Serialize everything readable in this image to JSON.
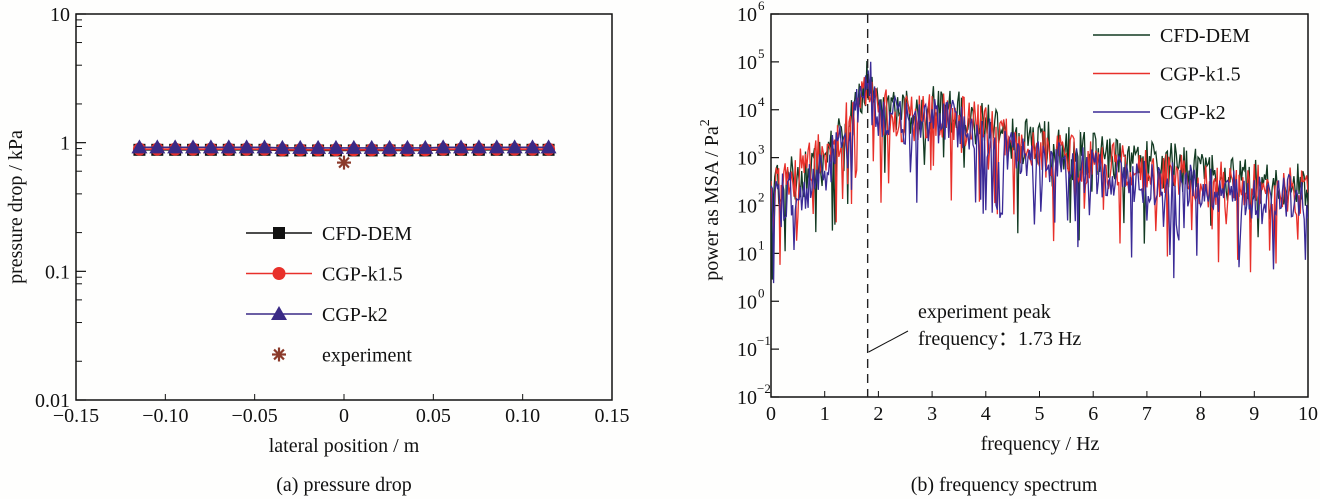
{
  "chart_data": [
    {
      "type": "line",
      "caption": "(a) pressure  drop",
      "xlabel": "lateral  position / m",
      "ylabel": "pressure  drop / kPa",
      "xlim": [
        -0.15,
        0.15
      ],
      "ylim": [
        0.01,
        10
      ],
      "yscale": "log",
      "xticks": [
        -0.15,
        -0.1,
        -0.05,
        0,
        0.05,
        0.1,
        0.15
      ],
      "xtick_labels": [
        "−0.15",
        "−0.10",
        "−0.05",
        "0",
        "0.05",
        "0.10",
        "0.15"
      ],
      "yticks": [
        0.01,
        0.1,
        1,
        10
      ],
      "ytick_labels": [
        "0.01",
        "0.1",
        "1",
        "10"
      ],
      "legend_position": "center",
      "x": [
        -0.1145,
        -0.1045,
        -0.0945,
        -0.0845,
        -0.0745,
        -0.0645,
        -0.0545,
        -0.0445,
        -0.0345,
        -0.0245,
        -0.0145,
        -0.0045,
        0.0055,
        0.0155,
        0.0255,
        0.0355,
        0.0455,
        0.0555,
        0.0655,
        0.0755,
        0.0855,
        0.0955,
        0.1055,
        0.1145
      ],
      "series": [
        {
          "name": "CFD-DEM",
          "color": "#111111",
          "marker": "square",
          "values": [
            0.88,
            0.88,
            0.88,
            0.88,
            0.88,
            0.88,
            0.88,
            0.88,
            0.87,
            0.87,
            0.87,
            0.87,
            0.87,
            0.87,
            0.87,
            0.87,
            0.87,
            0.88,
            0.88,
            0.88,
            0.88,
            0.88,
            0.88,
            0.88
          ]
        },
        {
          "name": "CGP-k1.5",
          "color": "#e8302a",
          "marker": "circle",
          "values": [
            0.89,
            0.89,
            0.89,
            0.89,
            0.89,
            0.89,
            0.89,
            0.89,
            0.88,
            0.88,
            0.88,
            0.88,
            0.88,
            0.88,
            0.88,
            0.88,
            0.88,
            0.89,
            0.89,
            0.89,
            0.89,
            0.89,
            0.89,
            0.89
          ]
        },
        {
          "name": "CGP-k2",
          "color": "#3a2a86",
          "marker": "triangle",
          "values": [
            0.92,
            0.92,
            0.92,
            0.92,
            0.92,
            0.92,
            0.92,
            0.92,
            0.91,
            0.91,
            0.91,
            0.91,
            0.91,
            0.91,
            0.91,
            0.91,
            0.91,
            0.92,
            0.92,
            0.92,
            0.92,
            0.92,
            0.92,
            0.92
          ]
        },
        {
          "name": "experiment",
          "color": "#8b3a2a",
          "marker": "asterisk",
          "points": [
            [
              0.0,
              0.7
            ]
          ]
        }
      ]
    },
    {
      "type": "line",
      "caption": "(b) frequency  spectrum",
      "xlabel": "frequency / Hz",
      "ylabel": "power  as  MSA / Pa²",
      "xlim": [
        0,
        10
      ],
      "ylim": [
        0.01,
        1000000
      ],
      "yscale": "log",
      "xticks": [
        0,
        1,
        2,
        3,
        4,
        5,
        6,
        7,
        8,
        9,
        10
      ],
      "xtick_labels": [
        "0",
        "1",
        "2",
        "3",
        "4",
        "5",
        "6",
        "7",
        "8",
        "9",
        "10"
      ],
      "yticks_exp": [
        -2,
        -1,
        0,
        1,
        2,
        3,
        4,
        5,
        6
      ],
      "ytick_base": "10",
      "legend_position": "top-right",
      "envelope_note": "dense noisy spectra; approximate log10 envelope sampled every 0.5 Hz",
      "envelope_x": [
        0,
        0.5,
        1.0,
        1.5,
        1.8,
        2.0,
        2.5,
        3.0,
        3.5,
        4.0,
        4.5,
        5.0,
        5.5,
        6.0,
        6.5,
        7.0,
        7.5,
        8.0,
        8.5,
        9.0,
        9.5,
        10.0
      ],
      "series": [
        {
          "name": "CFD-DEM",
          "color": "#123a22",
          "envelope_log10": [
            2.4,
            2.7,
            3.0,
            4.0,
            4.7,
            4.2,
            4.0,
            4.1,
            4.0,
            3.8,
            3.5,
            3.4,
            3.3,
            3.2,
            3.1,
            3.0,
            2.9,
            2.8,
            2.7,
            2.6,
            2.5,
            2.5
          ]
        },
        {
          "name": "CGP-k1.5",
          "color": "#e8302a",
          "envelope_log10": [
            2.3,
            2.8,
            3.2,
            3.9,
            4.8,
            4.1,
            3.9,
            4.0,
            3.9,
            3.7,
            3.4,
            3.2,
            3.1,
            3.0,
            2.9,
            2.8,
            2.7,
            2.6,
            2.5,
            2.5,
            2.4,
            2.4
          ]
        },
        {
          "name": "CGP-k2",
          "color": "#3a2a96",
          "envelope_log10": [
            2.2,
            2.4,
            2.8,
            3.8,
            4.9,
            4.0,
            3.8,
            3.9,
            3.8,
            3.5,
            3.2,
            3.0,
            2.9,
            2.8,
            2.7,
            2.6,
            2.5,
            2.5,
            2.4,
            2.3,
            2.3,
            2.2
          ]
        }
      ],
      "annotation": {
        "line1": "experiment  peak",
        "line2": "frequency：1.73 Hz",
        "peak_frequency_hz": 1.73,
        "style": "dashed vertical line"
      }
    }
  ]
}
